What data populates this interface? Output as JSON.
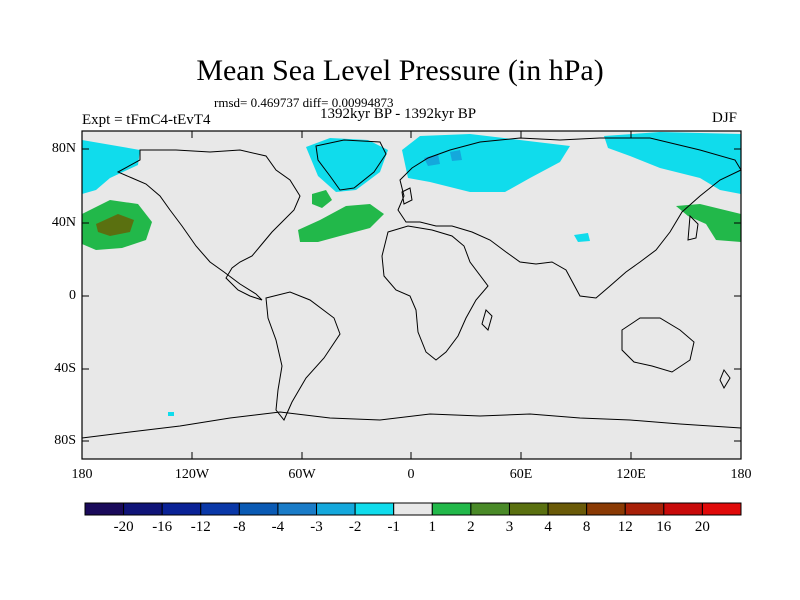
{
  "title": "Mean Sea Level Pressure (in hPa)",
  "stats_line": "rmsd= 0.469737 diff= 0.00994873",
  "experiment": "Expt = tFmC4-tEvT4",
  "period": "1392kyr BP - 1392kyr BP",
  "season": "DJF",
  "map": {
    "lat_labels": [
      "80N",
      "40N",
      "0",
      "40S",
      "80S"
    ],
    "lon_labels": [
      "180",
      "120W",
      "60W",
      "0",
      "60E",
      "120E",
      "180"
    ],
    "background_color": "#e8e8e8"
  },
  "colorbar": {
    "labels": [
      "-20",
      "-16",
      "-12",
      "-8",
      "-4",
      "-3",
      "-2",
      "-1",
      "1",
      "2",
      "3",
      "4",
      "8",
      "12",
      "16",
      "20"
    ],
    "colors": [
      "#1a0a5a",
      "#101478",
      "#0a2296",
      "#0a38a8",
      "#0a5ab4",
      "#1a7cc8",
      "#14a8dc",
      "#10dcec",
      "#e8e8e8",
      "#22b84a",
      "#4a8a28",
      "#5a7010",
      "#6a5a08",
      "#8a3a04",
      "#a82008",
      "#c80a0a",
      "#e00a0a"
    ]
  }
}
